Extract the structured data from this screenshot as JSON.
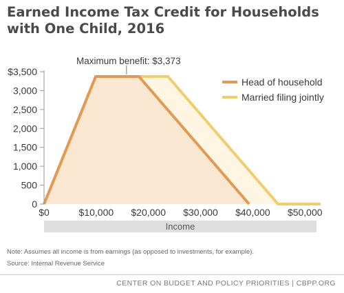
{
  "colors": {
    "head": "#e19a55",
    "head_fill": "#f8e1cb",
    "married": "#f2cd6b",
    "married_fill": "#fdf1d8",
    "axis_band": "#dedede",
    "text": "#3a3a3a"
  },
  "chart_data": {
    "type": "area",
    "title": "Earned Income Tax Credit for Households with One Child, 2016",
    "xlabel": "Income",
    "ylabel": "",
    "xlim": [
      0,
      53000
    ],
    "ylim": [
      0,
      3500
    ],
    "xticks": [
      0,
      10000,
      20000,
      30000,
      40000,
      50000
    ],
    "xtick_labels": [
      "$0",
      "$10,000",
      "$20,000",
      "$30,000",
      "$40,000",
      "$50,000"
    ],
    "yticks": [
      0,
      500,
      1000,
      1500,
      2000,
      2500,
      3000,
      3500
    ],
    "ytick_labels": [
      "0",
      "500",
      "1,000",
      "1,500",
      "2,000",
      "2,500",
      "3,000",
      "$3,500"
    ],
    "grid": false,
    "legend": "top-right",
    "series": [
      {
        "name": "Married filing jointly",
        "x": [
          0,
          9900,
          23740,
          44850,
          53000
        ],
        "y": [
          0,
          3373,
          3373,
          0,
          0
        ]
      },
      {
        "name": "Head of household",
        "x": [
          0,
          9900,
          18190,
          39300
        ],
        "y": [
          0,
          3373,
          3373,
          0
        ]
      }
    ],
    "annotations": [
      {
        "text": "Maximum benefit: $3,373",
        "x": 15800,
        "y": 3373
      }
    ]
  },
  "note": "Note: Assumes all income is from earnings (as opposed to investments, for example).",
  "source": "Source: Internal Revenue Service",
  "footer": "CENTER ON BUDGET AND POLICY PRIORITIES | CBPP.ORG"
}
